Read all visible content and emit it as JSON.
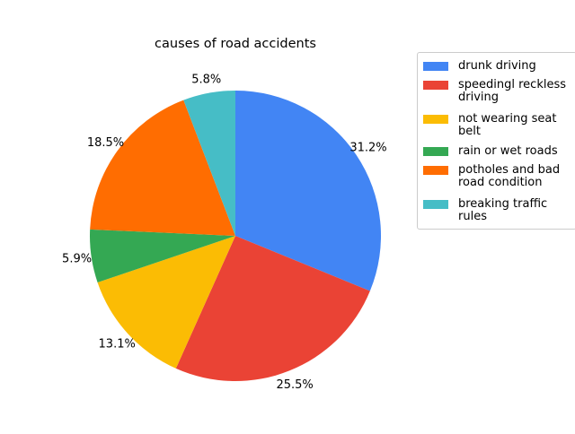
{
  "chart_data": {
    "type": "pie",
    "title": "causes of road accidents",
    "start_angle_deg": 90,
    "direction": "clockwise",
    "legend_position": "upper right, outside plot",
    "slices": [
      {
        "label": "drunk driving",
        "value": 31.2,
        "pct_label": "31.2%",
        "color": "#4285f4"
      },
      {
        "label": "speedingl reckless driving",
        "value": 25.5,
        "pct_label": "25.5%",
        "color": "#ea4335"
      },
      {
        "label": "not wearing seat belt",
        "value": 13.1,
        "pct_label": "13.1%",
        "color": "#fbbc04"
      },
      {
        "label": "rain or wet roads",
        "value": 5.9,
        "pct_label": "5.9%",
        "color": "#34a853"
      },
      {
        "label": "potholes and bad road condition",
        "value": 18.5,
        "pct_label": "18.5%",
        "color": "#ff6d01"
      },
      {
        "label": "breaking traffic rules",
        "value": 5.8,
        "pct_label": "5.8%",
        "color": "#46bdc6"
      }
    ]
  }
}
